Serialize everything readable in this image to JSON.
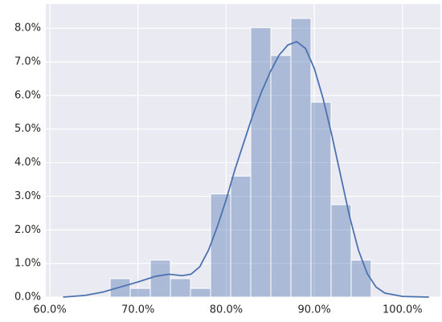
{
  "chart_data": {
    "type": "histogram",
    "bins": [
      66.84,
      69.118,
      71.396,
      73.674,
      75.952,
      78.23,
      80.508,
      82.786,
      85.064,
      87.342,
      89.62,
      91.898,
      94.176,
      96.454
    ],
    "counts": [
      0.55,
      0.26,
      1.1,
      0.55,
      0.26,
      3.07,
      3.6,
      8.02,
      7.19,
      8.29,
      5.8,
      2.75,
      1.1
    ],
    "color": "#4c72b0",
    "bar_opacity": 0.4,
    "kde": {
      "color": "#4c72b0",
      "x": [
        61.5,
        64,
        66,
        68,
        70,
        72,
        73.5,
        75,
        76,
        77,
        78,
        79,
        80,
        81,
        82,
        83,
        84,
        85,
        86,
        87,
        88,
        89,
        90,
        91,
        92,
        93,
        94,
        95,
        96,
        97,
        98,
        100,
        103
      ],
      "values": [
        0.0,
        0.05,
        0.15,
        0.3,
        0.45,
        0.62,
        0.68,
        0.64,
        0.68,
        0.9,
        1.4,
        2.1,
        2.9,
        3.8,
        4.6,
        5.4,
        6.1,
        6.7,
        7.2,
        7.5,
        7.6,
        7.4,
        6.8,
        5.9,
        4.8,
        3.6,
        2.4,
        1.4,
        0.7,
        0.3,
        0.12,
        0.02,
        0.0
      ]
    },
    "xlim": [
      59.54,
      104.3
    ],
    "ylim": [
      0,
      8.72
    ],
    "xticks": [
      {
        "value": 60,
        "label": "60.0%"
      },
      {
        "value": 70,
        "label": "70.0%"
      },
      {
        "value": 80,
        "label": "80.0%"
      },
      {
        "value": 90,
        "label": "90.0%"
      },
      {
        "value": 100,
        "label": "100.0%"
      }
    ],
    "yticks": [
      {
        "value": 0,
        "label": "0.0%"
      },
      {
        "value": 1,
        "label": "1.0%"
      },
      {
        "value": 2,
        "label": "2.0%"
      },
      {
        "value": 3,
        "label": "3.0%"
      },
      {
        "value": 4,
        "label": "4.0%"
      },
      {
        "value": 5,
        "label": "5.0%"
      },
      {
        "value": 6,
        "label": "6.0%"
      },
      {
        "value": 7,
        "label": "7.0%"
      },
      {
        "value": 8,
        "label": "8.0%"
      }
    ],
    "grid": true
  }
}
